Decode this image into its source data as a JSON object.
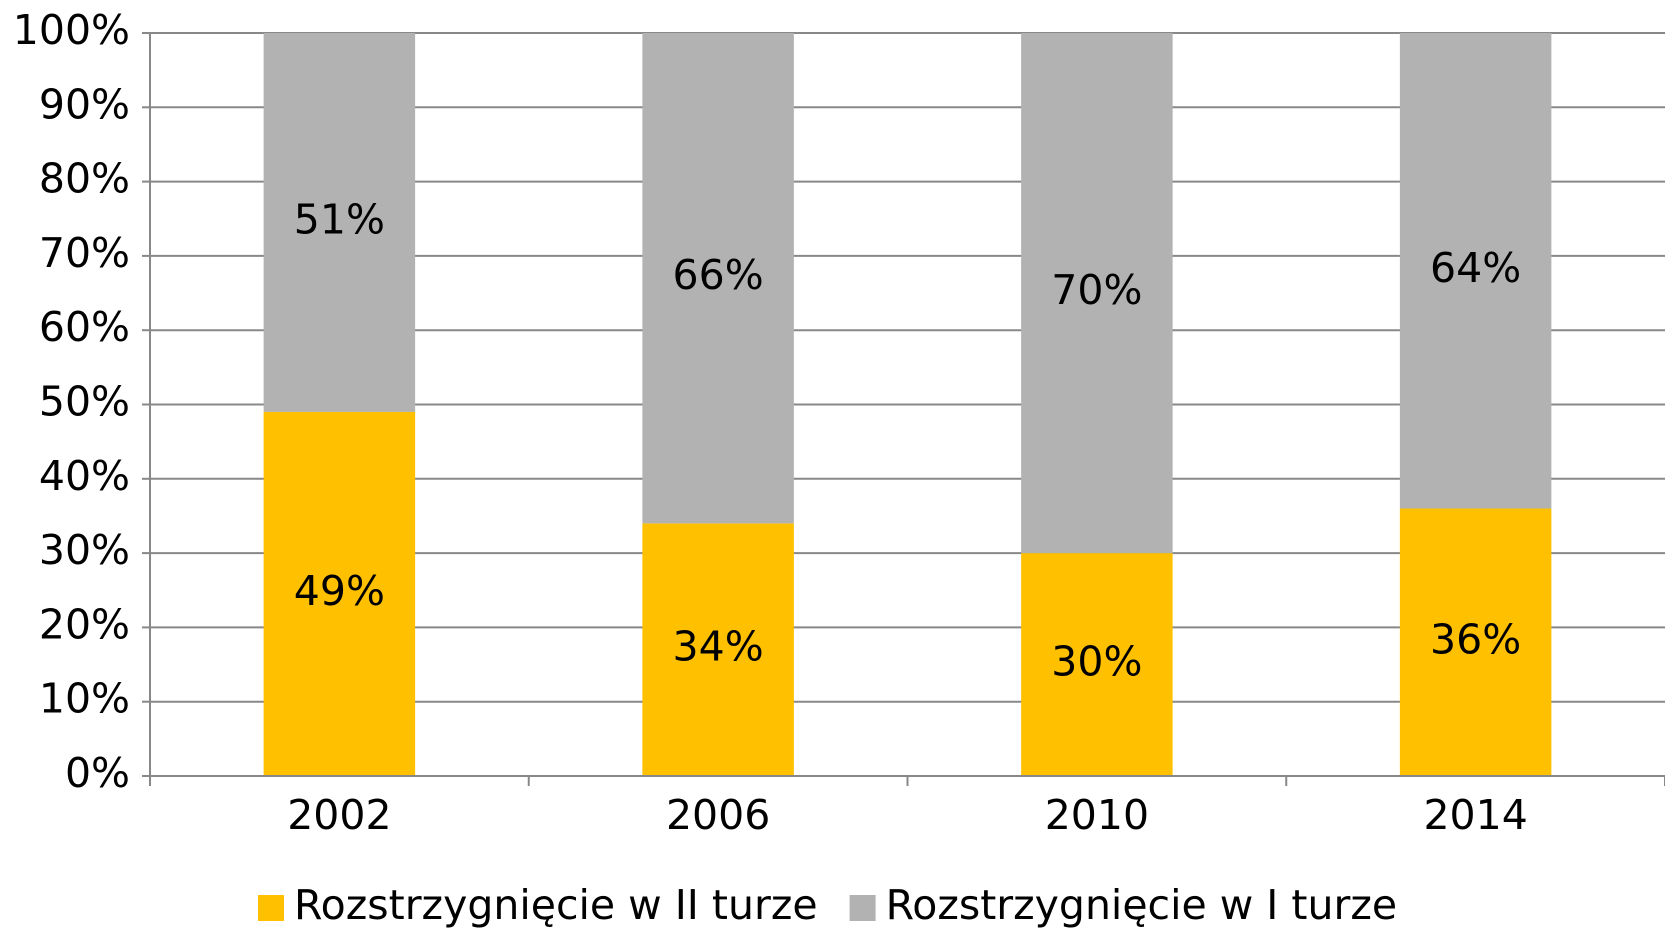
{
  "chart_data": {
    "type": "stacked_bar",
    "categories": [
      "2002",
      "2006",
      "2010",
      "2014"
    ],
    "series": [
      {
        "name": "Rozstrzygnięcie w II turze",
        "color": "#FFC000",
        "values": [
          49,
          34,
          30,
          36
        ],
        "value_labels": [
          "49%",
          "34%",
          "30%",
          "36%"
        ]
      },
      {
        "name": "Rozstrzygnięcie w I turze",
        "color": "#B2B2B2",
        "values": [
          51,
          66,
          70,
          64
        ],
        "value_labels": [
          "51%",
          "66%",
          "70%",
          "64%"
        ]
      }
    ],
    "ylim": [
      0,
      100
    ],
    "yticks": [
      {
        "value": 0,
        "label": "0%"
      },
      {
        "value": 10,
        "label": "10%"
      },
      {
        "value": 20,
        "label": "20%"
      },
      {
        "value": 30,
        "label": "30%"
      },
      {
        "value": 40,
        "label": "40%"
      },
      {
        "value": 50,
        "label": "50%"
      },
      {
        "value": 60,
        "label": "60%"
      },
      {
        "value": 70,
        "label": "70%"
      },
      {
        "value": 80,
        "label": "80%"
      },
      {
        "value": 90,
        "label": "90%"
      },
      {
        "value": 100,
        "label": "100%"
      }
    ],
    "grid": true,
    "legend": "bottom"
  }
}
